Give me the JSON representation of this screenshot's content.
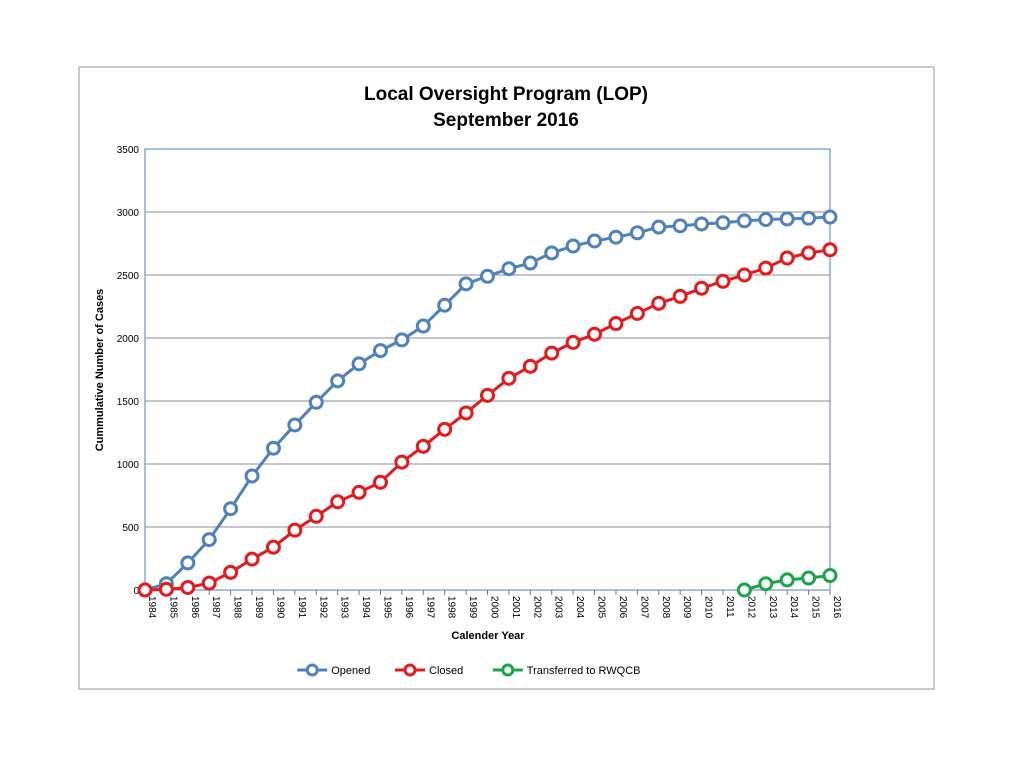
{
  "chart_data": {
    "type": "line",
    "title": "Local Oversight Program (LOP)",
    "subtitle": "September 2016",
    "x_label": "Calender Year",
    "y_label": "Cummulative Number of Cases",
    "categories": [
      "1984",
      "1985",
      "1986",
      "1987",
      "1988",
      "1989",
      "1990",
      "1991",
      "1992",
      "1993",
      "1994",
      "1995",
      "1996",
      "1997",
      "1998",
      "1999",
      "2000",
      "2001",
      "2002",
      "2003",
      "2004",
      "2005",
      "2006",
      "2007",
      "2008",
      "2009",
      "2010",
      "2011",
      "2012",
      "2013",
      "2014",
      "2015",
      "2016"
    ],
    "series": [
      {
        "name": "Opened",
        "color": "#4f81bd",
        "values": [
          0,
          50,
          215,
          400,
          645,
          905,
          1125,
          1310,
          1490,
          1660,
          1795,
          1900,
          1985,
          2095,
          2260,
          2430,
          2490,
          2550,
          2595,
          2675,
          2730,
          2770,
          2800,
          2835,
          2880,
          2890,
          2905,
          2915,
          2930,
          2940,
          2945,
          2950,
          2960
        ]
      },
      {
        "name": "Closed",
        "color": "#e41a1c",
        "values": [
          0,
          5,
          20,
          55,
          140,
          245,
          340,
          475,
          585,
          700,
          775,
          855,
          1015,
          1140,
          1275,
          1405,
          1545,
          1680,
          1775,
          1880,
          1965,
          2030,
          2115,
          2195,
          2275,
          2330,
          2395,
          2450,
          2500,
          2555,
          2635,
          2675,
          2700
        ]
      },
      {
        "name": "Transferred to RWQCB",
        "color": "#1aa549",
        "values": [
          null,
          null,
          null,
          null,
          null,
          null,
          null,
          null,
          null,
          null,
          null,
          null,
          null,
          null,
          null,
          null,
          null,
          null,
          null,
          null,
          null,
          null,
          null,
          null,
          null,
          null,
          null,
          null,
          0,
          50,
          80,
          95,
          115
        ]
      }
    ],
    "ylim": [
      0,
      3500
    ],
    "yticks": [
      0,
      500,
      1000,
      1500,
      2000,
      2500,
      3000,
      3500
    ],
    "grid": true,
    "legend": "bottom"
  }
}
